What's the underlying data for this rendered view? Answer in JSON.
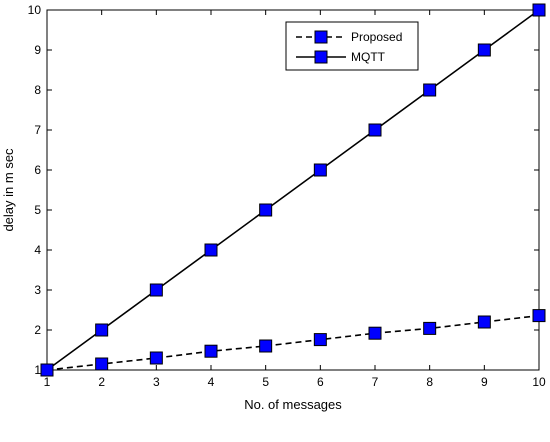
{
  "chart_data": {
    "type": "line",
    "title": "",
    "xlabel": "No. of messages",
    "ylabel": "delay in m sec",
    "xlim": [
      1,
      10
    ],
    "ylim": [
      1,
      10
    ],
    "x_ticks": [
      1,
      2,
      3,
      4,
      5,
      6,
      7,
      8,
      9,
      10
    ],
    "y_ticks": [
      1,
      2,
      3,
      4,
      5,
      6,
      7,
      8,
      9,
      10
    ],
    "grid": false,
    "legend_position": "top-right",
    "x": [
      1,
      2,
      3,
      4,
      5,
      6,
      7,
      8,
      9,
      10
    ],
    "series": [
      {
        "name": "Proposed",
        "values": [
          1.0,
          1.15,
          1.3,
          1.47,
          1.6,
          1.76,
          1.92,
          2.04,
          2.2,
          2.36
        ],
        "line_style": "dashed",
        "marker": "square",
        "line_color": "#000000",
        "marker_color": "#0000ff"
      },
      {
        "name": "MQTT",
        "values": [
          1,
          2,
          3,
          4,
          5,
          6,
          7,
          8,
          9,
          10
        ],
        "line_style": "solid",
        "marker": "square",
        "line_color": "#000000",
        "marker_color": "#0000ff"
      }
    ]
  }
}
